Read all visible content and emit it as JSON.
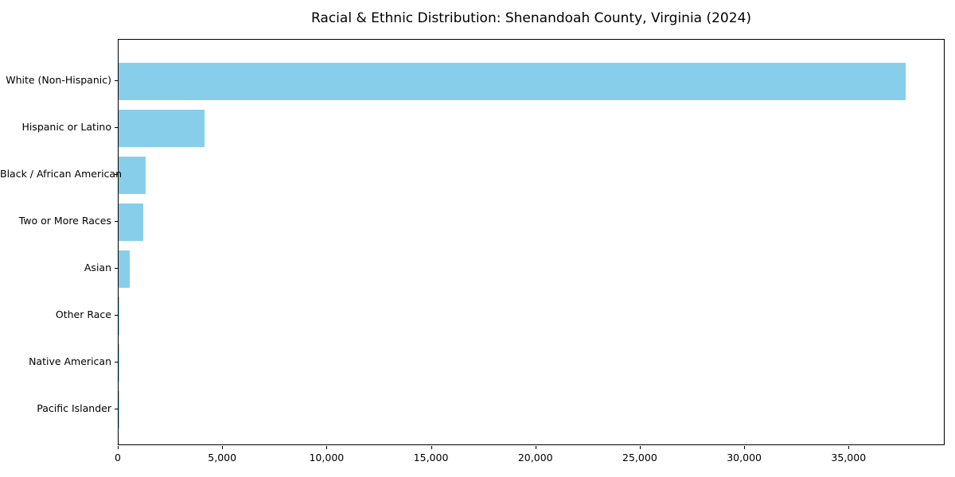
{
  "chart_data": {
    "type": "bar",
    "orientation": "horizontal",
    "title": "Racial & Ethnic Distribution: Shenandoah County, Virginia (2024)",
    "categories": [
      "White (Non-Hispanic)",
      "Hispanic or Latino",
      "Black / African American",
      "Two or More Races",
      "Asian",
      "Other Race",
      "Native American",
      "Pacific Islander"
    ],
    "values": [
      37700,
      4100,
      1300,
      1190,
      540,
      50,
      25,
      10
    ],
    "xlabel": "",
    "ylabel": "",
    "xlim": [
      0,
      39600
    ],
    "x_ticks": [
      0,
      5000,
      10000,
      15000,
      20000,
      25000,
      30000,
      35000
    ],
    "x_tick_labels": [
      "0",
      "5,000",
      "10,000",
      "15,000",
      "20,000",
      "25,000",
      "30,000",
      "35,000"
    ],
    "bar_color": "#87CEEB",
    "axis_color": "#000000",
    "text_color": "#000000",
    "background_color": "#ffffff",
    "grid": false,
    "legend": null
  }
}
